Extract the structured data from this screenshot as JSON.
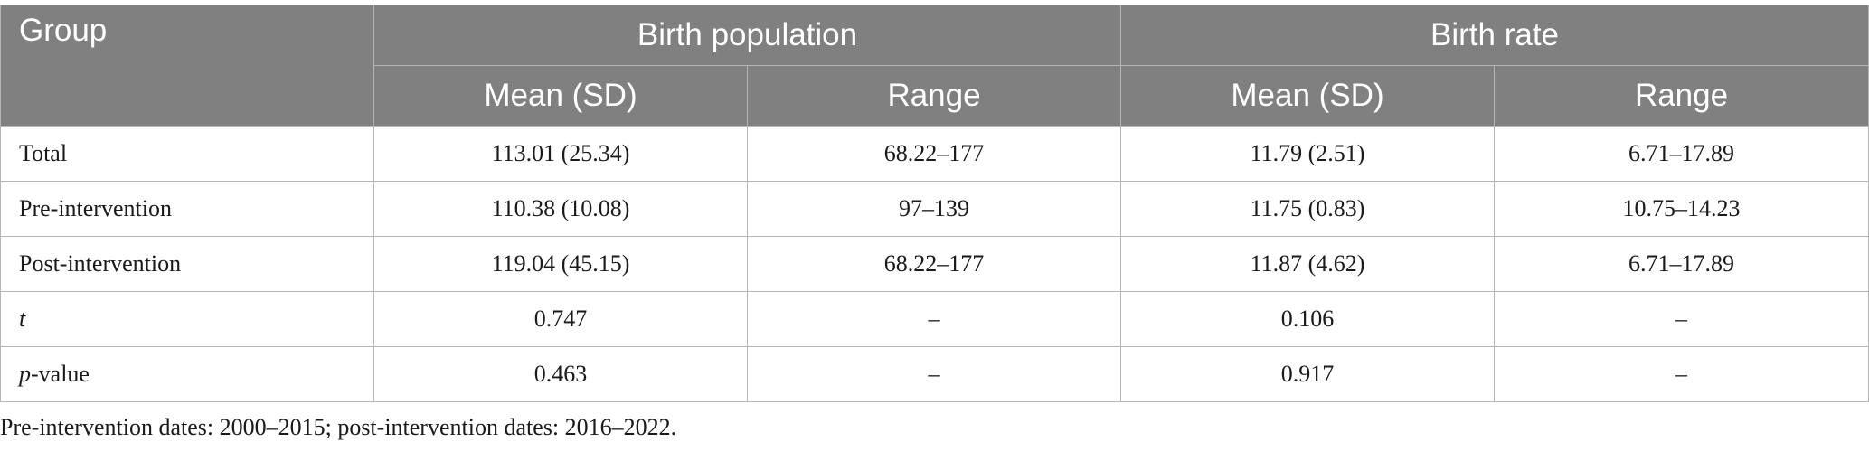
{
  "table": {
    "headers": {
      "group": "Group",
      "birth_population": "Birth population",
      "birth_rate": "Birth rate",
      "bp_mean": "Mean (SD)",
      "bp_range": "Range",
      "br_mean": "Mean (SD)",
      "br_range": "Range"
    },
    "rows": [
      {
        "group": "Total",
        "bp_mean": "113.01 (25.34)",
        "bp_range": "68.22–177",
        "br_mean": "11.79 (2.51)",
        "br_range": "6.71–17.89"
      },
      {
        "group": "Pre-intervention",
        "bp_mean": "110.38 (10.08)",
        "bp_range": "97–139",
        "br_mean": "11.75 (0.83)",
        "br_range": "10.75–14.23"
      },
      {
        "group": "Post-intervention",
        "bp_mean": "119.04 (45.15)",
        "bp_range": "68.22–177",
        "br_mean": "11.87 (4.62)",
        "br_range": "6.71–17.89"
      },
      {
        "group_italic": "t",
        "group_rest": "",
        "bp_mean": "0.747",
        "bp_range": "–",
        "br_mean": "0.106",
        "br_range": "–"
      },
      {
        "group_italic": "p",
        "group_rest": "-value",
        "bp_mean": "0.463",
        "bp_range": "–",
        "br_mean": "0.917",
        "br_range": "–"
      }
    ]
  },
  "footnote": "Pre-intervention dates: 2000–2015; post-intervention dates: 2016–2022.",
  "colors": {
    "header_bg": "#808080",
    "header_text": "#ffffff",
    "border": "#b5b5b5"
  }
}
